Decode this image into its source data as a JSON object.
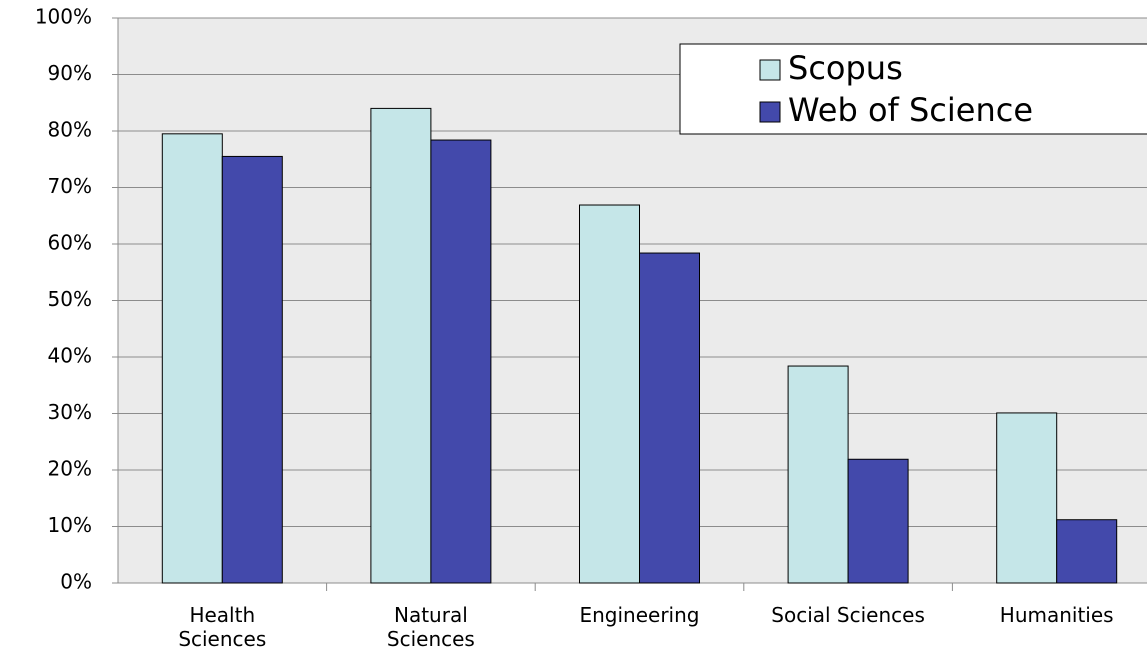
{
  "chart_data": {
    "type": "bar",
    "categories": [
      "Health\nSciences",
      "Natural\nSciences",
      "Engineering",
      "Social Sciences",
      "Humanities"
    ],
    "series": [
      {
        "name": "Scopus",
        "color": "#c5e6e8",
        "values": [
          79.5,
          84,
          66.9,
          38.4,
          30.1
        ]
      },
      {
        "name": "Web of Science",
        "color": "#4349ab",
        "values": [
          75.5,
          78.4,
          58.4,
          21.9,
          11.2
        ]
      }
    ],
    "ylim": [
      0,
      100
    ],
    "yticks": [
      {
        "value": 0,
        "label": "0%"
      },
      {
        "value": 10,
        "label": "10%"
      },
      {
        "value": 20,
        "label": "20%"
      },
      {
        "value": 30,
        "label": "30%"
      },
      {
        "value": 40,
        "label": "40%"
      },
      {
        "value": 50,
        "label": "50%"
      },
      {
        "value": 60,
        "label": "60%"
      },
      {
        "value": 70,
        "label": "70%"
      },
      {
        "value": 80,
        "label": "80%"
      },
      {
        "value": 90,
        "label": "90%"
      },
      {
        "value": 100,
        "label": "100%"
      }
    ],
    "grid": true,
    "legend": "top-right"
  }
}
